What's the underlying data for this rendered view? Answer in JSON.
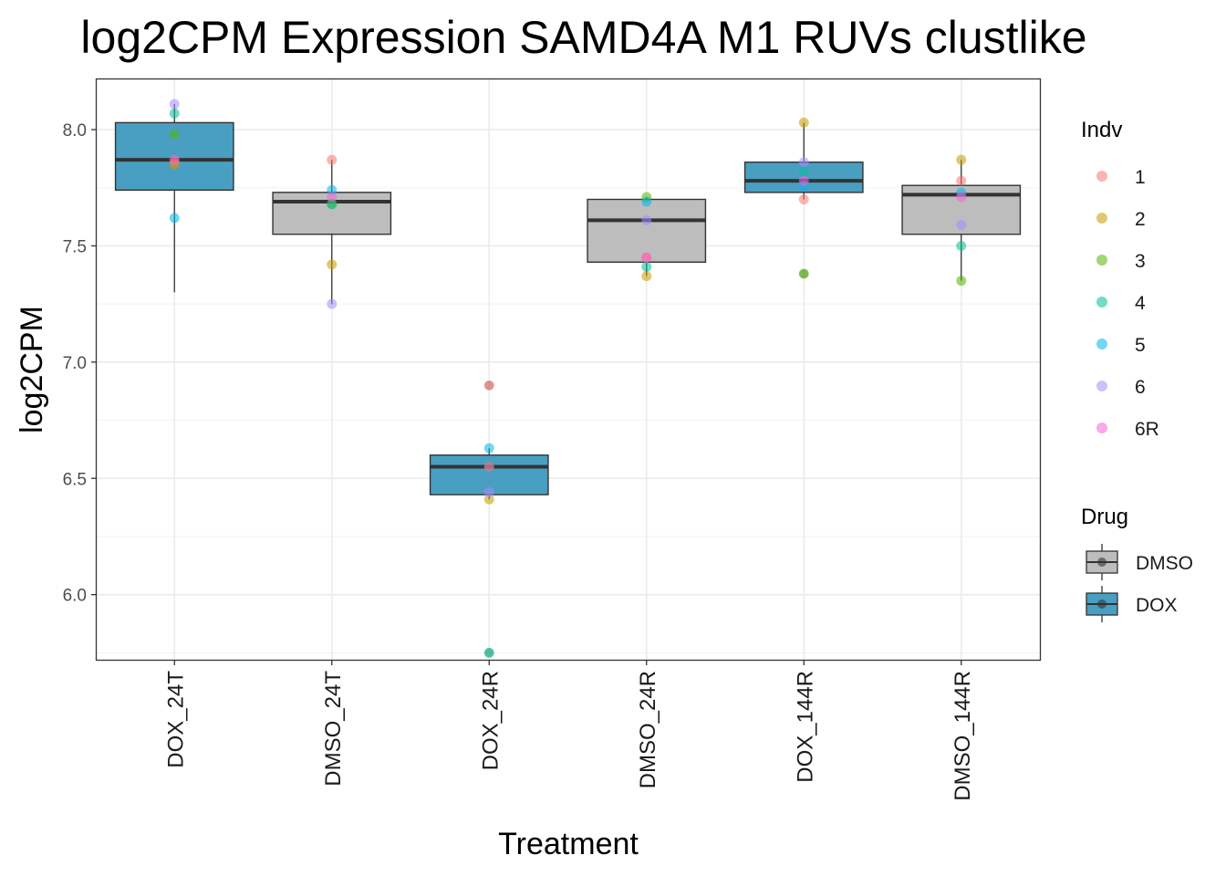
{
  "chart_data": {
    "type": "box",
    "title": "log2CPM Expression SAMD4A M1 RUVs clustlike",
    "xlabel": "Treatment",
    "ylabel": "log2CPM",
    "ylim": [
      5.72,
      8.22
    ],
    "y_ticks": [
      6.0,
      6.5,
      7.0,
      7.5,
      8.0
    ],
    "y_tick_labels": [
      "6.0",
      "6.5",
      "7.0",
      "7.5",
      "8.0"
    ],
    "grid": true,
    "legend_position": "right",
    "categories": [
      "DOX_24T",
      "DMSO_24T",
      "DOX_24R",
      "DMSO_24R",
      "DOX_144R",
      "DMSO_144R"
    ],
    "fill_colors": {
      "DMSO": "#bdbdbd",
      "DOX": "#499fc2"
    },
    "boxes": [
      {
        "category": "DOX_24T",
        "drug": "DOX",
        "min": 7.3,
        "q1": 7.74,
        "median": 7.87,
        "q3": 8.03,
        "max": 8.11
      },
      {
        "category": "DMSO_24T",
        "drug": "DMSO",
        "min": 7.25,
        "q1": 7.55,
        "median": 7.69,
        "q3": 7.73,
        "max": 7.87
      },
      {
        "category": "DOX_24R",
        "drug": "DOX",
        "min": 6.41,
        "q1": 6.43,
        "median": 6.55,
        "q3": 6.6,
        "max": 6.63
      },
      {
        "category": "DMSO_24R",
        "drug": "DMSO",
        "min": 7.37,
        "q1": 7.43,
        "median": 7.61,
        "q3": 7.7,
        "max": 7.71
      },
      {
        "category": "DOX_144R",
        "drug": "DOX",
        "min": 7.7,
        "q1": 7.73,
        "median": 7.78,
        "q3": 7.86,
        "max": 8.03
      },
      {
        "category": "DMSO_144R",
        "drug": "DMSO",
        "min": 7.35,
        "q1": 7.55,
        "median": 7.72,
        "q3": 7.76,
        "max": 7.87
      }
    ],
    "outliers": [
      {
        "category": "DOX_24R",
        "y": 6.9
      },
      {
        "category": "DOX_24R",
        "y": 5.75
      },
      {
        "category": "DOX_144R",
        "y": 7.38
      }
    ],
    "series": [
      {
        "name": "1",
        "color": "#f8766d",
        "values": [
          7.86,
          7.87,
          6.9,
          7.45,
          7.7,
          7.78
        ]
      },
      {
        "name": "2",
        "color": "#c49a00",
        "values": [
          7.85,
          7.42,
          6.41,
          7.37,
          8.03,
          7.87
        ]
      },
      {
        "name": "3",
        "color": "#53b400",
        "values": [
          7.98,
          7.68,
          6.55,
          7.71,
          7.38,
          7.35
        ]
      },
      {
        "name": "4",
        "color": "#00c094",
        "values": [
          8.07,
          7.68,
          5.75,
          7.41,
          7.82,
          7.5
        ]
      },
      {
        "name": "5",
        "color": "#00b6eb",
        "values": [
          7.62,
          7.74,
          6.63,
          7.69,
          7.76,
          7.73
        ]
      },
      {
        "name": "6",
        "color": "#a58aff",
        "values": [
          8.11,
          7.25,
          6.44,
          7.61,
          7.86,
          7.59
        ]
      },
      {
        "name": "6R",
        "color": "#fb61d7",
        "values": [
          7.87,
          7.71,
          6.55,
          7.45,
          7.78,
          7.71
        ]
      }
    ],
    "legend_indv": {
      "title": "Indv",
      "items": [
        "1",
        "2",
        "3",
        "4",
        "5",
        "6",
        "6R"
      ]
    },
    "legend_drug": {
      "title": "Drug",
      "items": [
        "DMSO",
        "DOX"
      ]
    }
  }
}
